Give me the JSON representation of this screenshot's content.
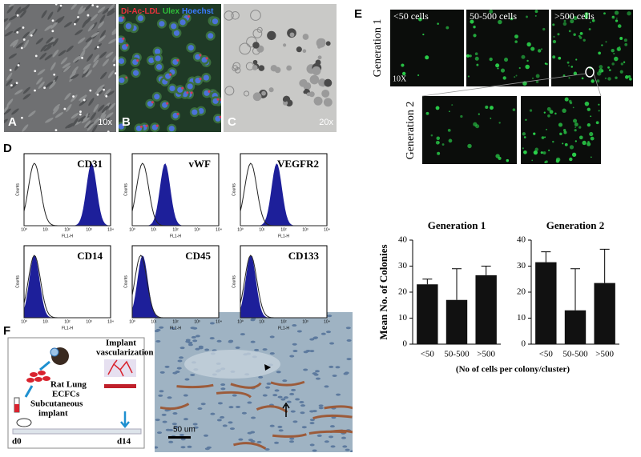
{
  "panel_a": {
    "label": "A",
    "magnification": "10x"
  },
  "panel_b": {
    "label": "B",
    "stains": [
      {
        "text": "Di-Ac-LDL",
        "color": "#e8323c"
      },
      {
        "text": "Ulex",
        "color": "#2fbf3a"
      },
      {
        "text": "Hoechst",
        "color": "#3a7bff"
      }
    ]
  },
  "panel_c": {
    "label": "C",
    "magnification": "20x"
  },
  "panel_d": {
    "label": "D",
    "y_axis": "Counts",
    "x_axis": "FL1-H",
    "x_tick_labels": [
      "10⁰",
      "10¹",
      "10²",
      "10³",
      "10⁴"
    ],
    "markers": [
      "CD31",
      "vWF",
      "VEGFR2",
      "CD14",
      "CD45",
      "CD133"
    ]
  },
  "panel_e": {
    "label": "E",
    "columns": [
      "<50 cells",
      "50-500 cells",
      ">500 cells"
    ],
    "rows": [
      "Generation 1",
      "Generation 2"
    ],
    "magnification": "10X"
  },
  "chart_data": [
    {
      "type": "bar",
      "title": "Generation 1",
      "ylabel": "Mean No. of Colonies",
      "xlabel": "(No of cells per colony/cluster)",
      "categories": [
        "<50",
        "50-500",
        ">500"
      ],
      "values": [
        23,
        17,
        26.5
      ],
      "errors": [
        2,
        12,
        3.5
      ],
      "color": "#111111",
      "ylim": [
        0,
        40
      ],
      "yticks": [
        0,
        10,
        20,
        30,
        40
      ]
    },
    {
      "type": "bar",
      "title": "Generation 2",
      "categories": [
        "<50",
        "50-500",
        ">500"
      ],
      "values": [
        31.5,
        13,
        23.5
      ],
      "errors": [
        4,
        16,
        13
      ],
      "color": "#111111",
      "ylim": [
        0,
        40
      ],
      "yticks": [
        0,
        10,
        20,
        30,
        40
      ]
    }
  ],
  "panel_f": {
    "label": "F",
    "cells": [
      "Rat Lung",
      "ECFCs"
    ],
    "implant": [
      "Subcutaneous",
      "implant"
    ],
    "result": [
      "Implant",
      "vascularization"
    ],
    "start": "d0",
    "end": "d14",
    "scale_bar": "50 um"
  }
}
